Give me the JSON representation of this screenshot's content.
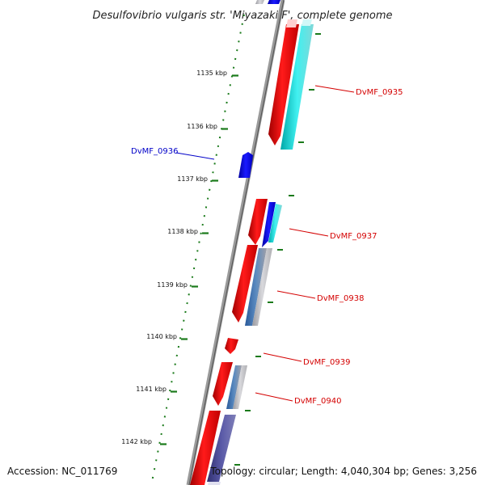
{
  "title": "Desulfovibrio vulgaris str. 'Miyazaki F', complete genome",
  "footer": {
    "accession": "Accession: NC_011769",
    "topology": "Topology: circular; Length: 4,040,304 bp; Genes: 3,256"
  },
  "ticks": [
    {
      "label": "1135 kbp"
    },
    {
      "label": "1136 kbp"
    },
    {
      "label": "1137 kbp"
    },
    {
      "label": "1138 kbp"
    },
    {
      "label": "1139 kbp"
    },
    {
      "label": "1140 kbp"
    },
    {
      "label": "1141 kbp"
    },
    {
      "label": "1142 kbp"
    }
  ],
  "gene_labels": [
    {
      "text": "DvMF_0935",
      "strand": "forward"
    },
    {
      "text": "DvMF_0936",
      "strand": "reverse"
    },
    {
      "text": "DvMF_0937",
      "strand": "forward"
    },
    {
      "text": "DvMF_0938",
      "strand": "forward"
    },
    {
      "text": "DvMF_0939",
      "strand": "forward"
    },
    {
      "text": "DvMF_0940",
      "strand": "forward"
    }
  ],
  "colors": {
    "forward_cds": "#ff0000",
    "reverse_cds": "#0000ff",
    "backbone": "#808080",
    "tick_marks": "#1a7a1a",
    "forward_label": "#d40000",
    "reverse_label": "#0000c8"
  }
}
